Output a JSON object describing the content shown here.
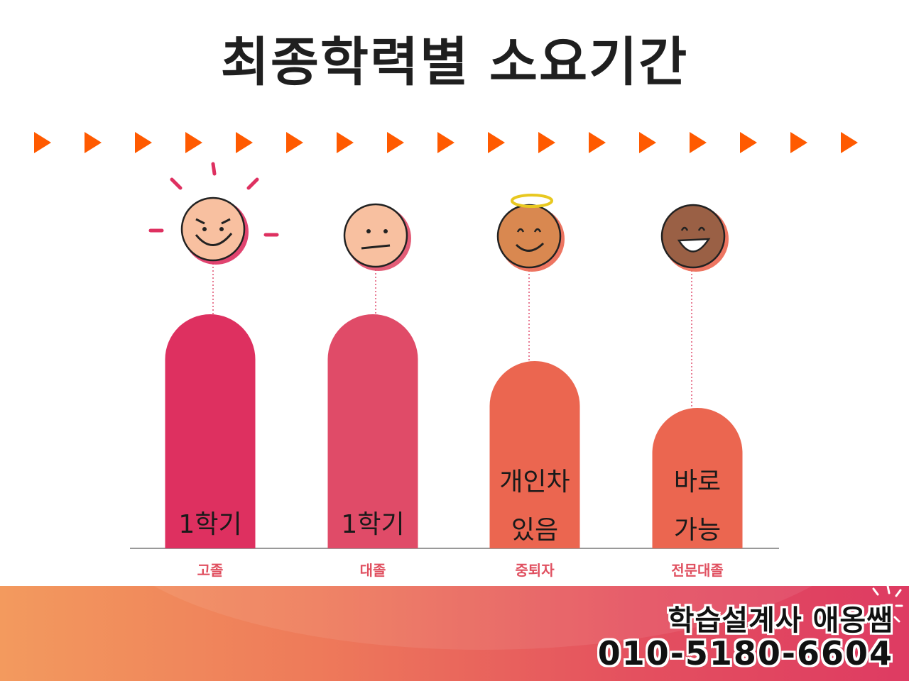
{
  "title": "최종학력별 소요기간",
  "colors": {
    "arrow": "#ff5a00",
    "bar_1": "#de3060",
    "bar_2": "#e04b68",
    "bar_3": "#eb6650",
    "bar_4": "#eb6650",
    "baseline": "#999999",
    "category_text": "#e05060"
  },
  "chart_data": {
    "type": "bar",
    "categories": [
      "고졸",
      "대졸",
      "중퇴자",
      "전문대졸"
    ],
    "values": [
      100,
      100,
      80,
      60
    ],
    "bar_labels": [
      [
        "1학기"
      ],
      [
        "1학기"
      ],
      [
        "개인차",
        "있음"
      ],
      [
        "바로",
        "가능"
      ]
    ],
    "face_icons": [
      "grinning-face-icon",
      "neutral-face-icon",
      "halo-smiling-face-icon",
      "laughing-face-icon"
    ],
    "ylim": [
      0,
      100
    ],
    "grid": false,
    "legend": "none"
  },
  "footer": {
    "name": "학습설계사 애옹쌤",
    "phone": "010-5180-6604"
  }
}
